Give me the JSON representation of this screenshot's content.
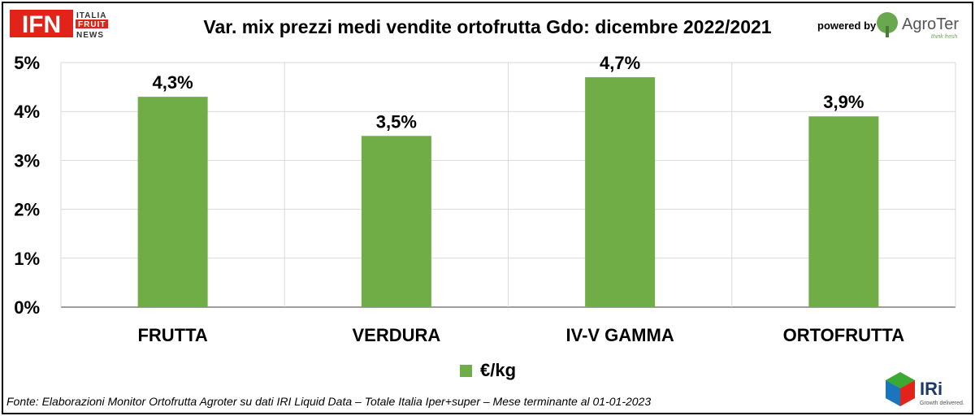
{
  "header": {
    "title": "Var. mix prezzi medi vendite ortofrutta Gdo: dicembre 2022/2021",
    "powered_by": "powered by",
    "ifn_logo": {
      "letters": "IFN",
      "line1": "ITALIA",
      "line2": "FRUIT",
      "line3": "NEWS"
    },
    "agroter_logo": {
      "name": "AgroTer",
      "tagline": "think fresh"
    }
  },
  "chart_data": {
    "type": "bar",
    "title": "Var. mix prezzi medi vendite ortofrutta Gdo: dicembre 2022/2021",
    "categories": [
      "FRUTTA",
      "VERDURA",
      "IV-V GAMMA",
      "ORTOFRUTTA"
    ],
    "series": [
      {
        "name": "€/kg",
        "values": [
          4.3,
          3.5,
          4.7,
          3.9
        ],
        "labels": [
          "4,3%",
          "3,5%",
          "4,7%",
          "3,9%"
        ],
        "color": "#70ad47"
      }
    ],
    "ylim": [
      0,
      5
    ],
    "yticks": [
      0,
      1,
      2,
      3,
      4,
      5
    ],
    "ytick_labels": [
      "0%",
      "1%",
      "2%",
      "3%",
      "4%",
      "5%"
    ],
    "xlabel": "",
    "ylabel": "",
    "grid": true,
    "legend": "bottom-center"
  },
  "legend": {
    "label": "€/kg",
    "color": "#70ad47"
  },
  "footer": {
    "source": "Fonte: Elaborazioni Monitor Ortofrutta Agroter su dati IRI Liquid Data – Totale Italia Iper+super – Mese terminante al 01-01-2023",
    "iri_logo": {
      "name": "IRi",
      "tagline": "Growth delivered."
    }
  },
  "colors": {
    "bar": "#70ad47",
    "grid": "#d9d9d9",
    "ifn_red": "#e2231a",
    "agroter_green": "#6aa84f"
  }
}
